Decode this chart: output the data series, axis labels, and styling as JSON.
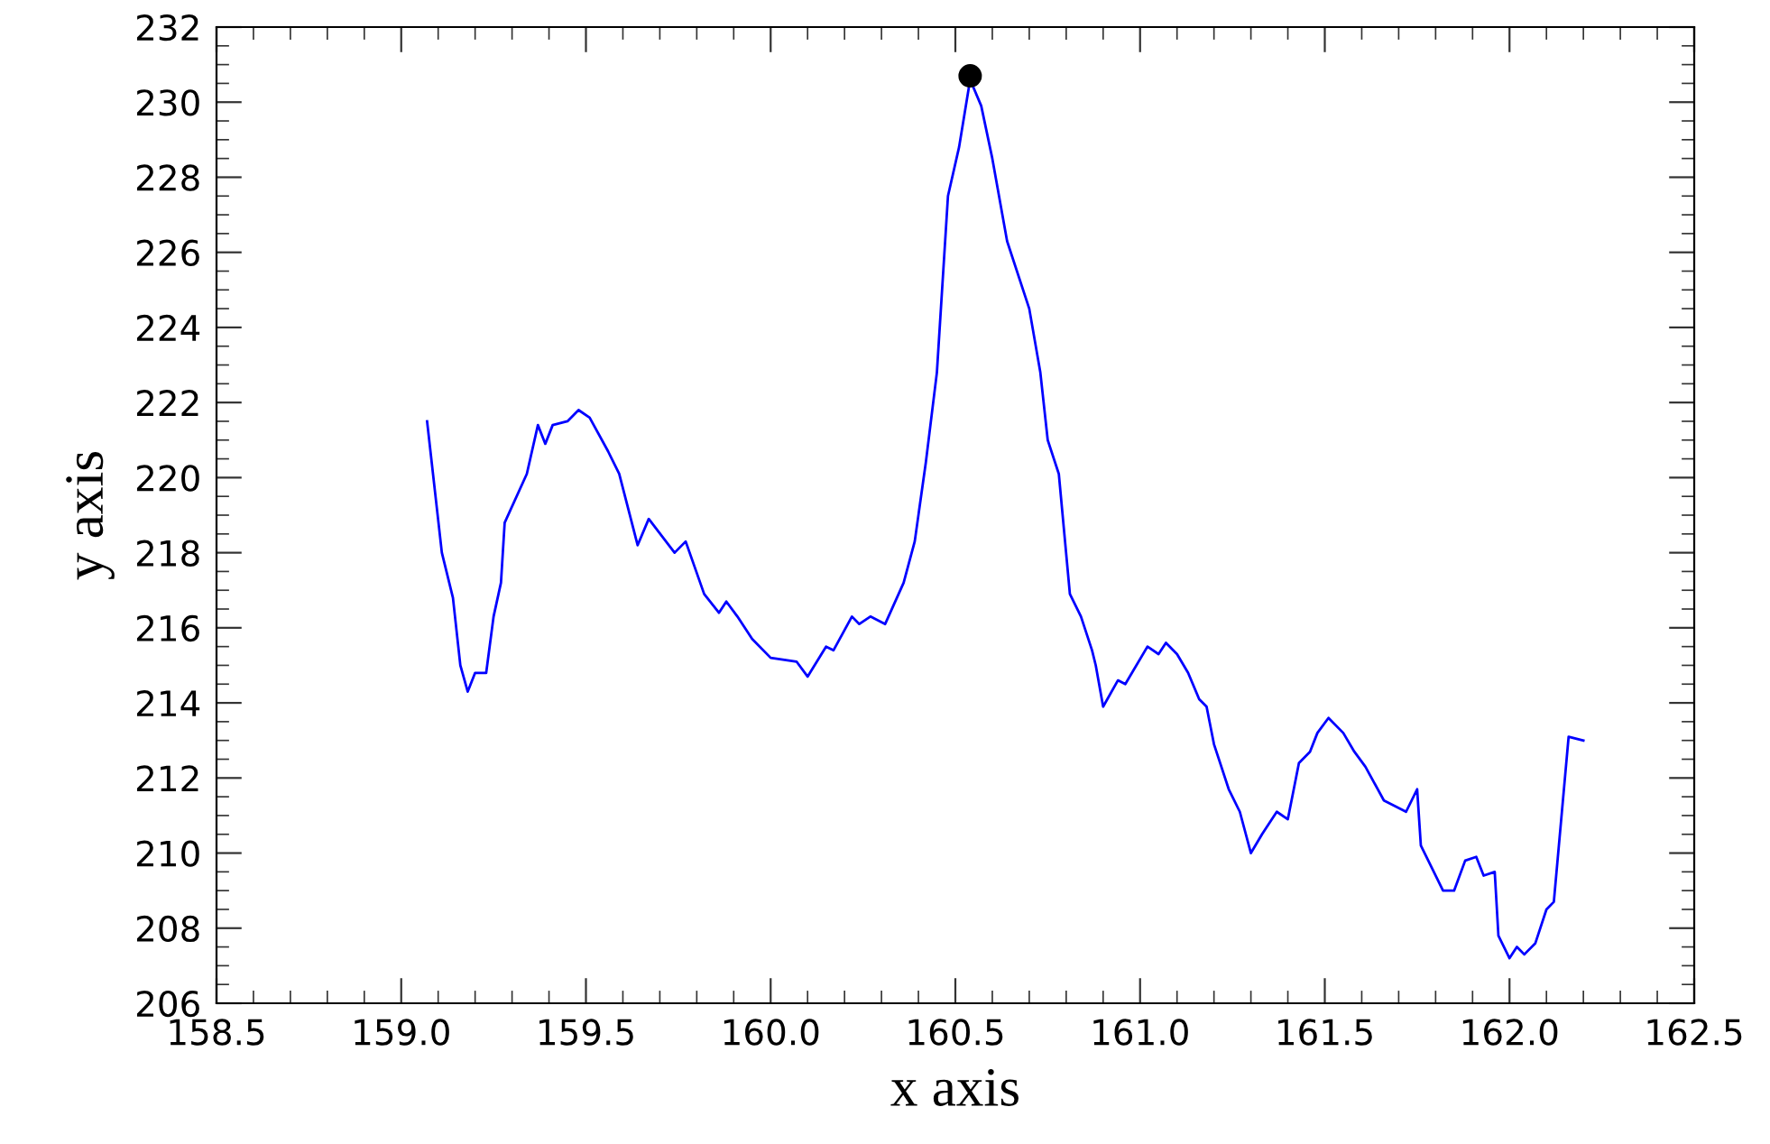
{
  "chart_data": {
    "type": "line",
    "xlabel": "x axis",
    "ylabel": "y axis",
    "xlim": [
      158.5,
      162.5
    ],
    "ylim": [
      206,
      232
    ],
    "xticks": [
      {
        "value": 158.5,
        "label": "158.5"
      },
      {
        "value": 159.0,
        "label": "159.0"
      },
      {
        "value": 159.5,
        "label": "159.5"
      },
      {
        "value": 160.0,
        "label": "160.0"
      },
      {
        "value": 160.5,
        "label": "160.5"
      },
      {
        "value": 161.0,
        "label": "161.0"
      },
      {
        "value": 161.5,
        "label": "161.5"
      },
      {
        "value": 162.0,
        "label": "162.0"
      },
      {
        "value": 162.5,
        "label": "162.5"
      }
    ],
    "yticks": [
      206,
      208,
      210,
      212,
      214,
      216,
      218,
      220,
      222,
      224,
      226,
      228,
      230,
      232
    ],
    "grid": false,
    "legend": false,
    "series": [
      {
        "color": "#0000ff",
        "marker": "none",
        "line_style": "solid",
        "x": [
          159.07,
          159.11,
          159.14,
          159.16,
          159.18,
          159.2,
          159.23,
          159.25,
          159.27,
          159.28,
          159.34,
          159.37,
          159.39,
          159.41,
          159.45,
          159.48,
          159.51,
          159.56,
          159.59,
          159.64,
          159.67,
          159.74,
          159.77,
          159.82,
          159.86,
          159.88,
          159.91,
          159.95,
          160.0,
          160.07,
          160.1,
          160.15,
          160.17,
          160.22,
          160.24,
          160.27,
          160.31,
          160.36,
          160.39,
          160.42,
          160.45,
          160.48,
          160.51,
          160.54,
          160.57,
          160.6,
          160.64,
          160.7,
          160.73,
          160.75,
          160.78,
          160.81,
          160.84,
          160.87,
          160.88,
          160.9,
          160.94,
          160.96,
          161.02,
          161.05,
          161.07,
          161.1,
          161.13,
          161.16,
          161.18,
          161.2,
          161.24,
          161.27,
          161.3,
          161.33,
          161.37,
          161.4,
          161.43,
          161.46,
          161.48,
          161.51,
          161.55,
          161.58,
          161.61,
          161.66,
          161.72,
          161.75,
          161.76,
          161.79,
          161.82,
          161.85,
          161.88,
          161.91,
          161.93,
          161.96,
          161.97,
          162.0,
          162.02,
          162.04,
          162.07,
          162.1,
          162.12,
          162.16,
          162.2
        ],
        "values": [
          221.5,
          218.0,
          216.8,
          215.0,
          214.3,
          214.8,
          214.8,
          216.3,
          217.2,
          218.8,
          220.1,
          221.4,
          220.9,
          221.4,
          221.5,
          221.8,
          221.6,
          220.7,
          220.1,
          218.2,
          218.9,
          218.0,
          218.3,
          216.9,
          216.4,
          216.7,
          216.3,
          215.7,
          215.2,
          215.1,
          214.7,
          215.5,
          215.4,
          216.3,
          216.1,
          216.3,
          216.1,
          217.2,
          218.3,
          220.4,
          222.8,
          227.5,
          228.8,
          230.6,
          229.9,
          228.5,
          226.3,
          224.5,
          222.8,
          221.0,
          220.1,
          216.9,
          216.3,
          215.4,
          215.0,
          213.9,
          214.6,
          214.5,
          215.5,
          215.3,
          215.6,
          215.3,
          214.8,
          214.1,
          213.9,
          212.9,
          211.7,
          211.1,
          210.0,
          210.5,
          211.1,
          210.9,
          212.4,
          212.7,
          213.2,
          213.6,
          213.2,
          212.7,
          212.3,
          211.4,
          211.1,
          211.7,
          210.2,
          209.6,
          209.0,
          209.0,
          209.8,
          209.9,
          209.4,
          209.5,
          207.8,
          207.2,
          207.5,
          207.3,
          207.6,
          208.5,
          208.7,
          213.1,
          213.0
        ]
      },
      {
        "type": "scatter",
        "color": "#000000",
        "marker": "circle",
        "x": [
          160.54
        ],
        "values": [
          230.7
        ]
      }
    ]
  }
}
